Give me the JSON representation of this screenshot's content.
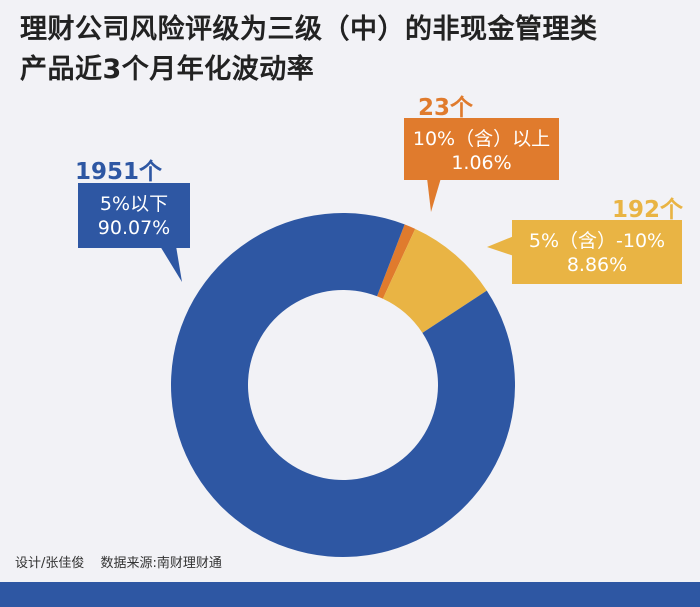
{
  "title_lines": [
    "理财公司风险评级为三级（中）的非现金管理类",
    "产品近3个月年化波动率"
  ],
  "chart_data": {
    "type": "pie",
    "title": "理财公司风险评级为三级（中）的非现金管理类产品近3个月年化波动率",
    "slices": [
      {
        "label": "5%以下",
        "count_label": "1951个",
        "count": 1951,
        "percent": 90.07,
        "percent_label": "90.07%",
        "color": "#2e57a3"
      },
      {
        "label": "10%（含）以上",
        "count_label": "23个",
        "count": 23,
        "percent": 1.06,
        "percent_label": "1.06%",
        "color": "#e07b2d"
      },
      {
        "label": "5%（含）-10%",
        "count_label": "192个",
        "count": 192,
        "percent": 8.86,
        "percent_label": "8.86%",
        "color": "#e9b444"
      }
    ],
    "donut": true,
    "start_angle_deg": 21
  },
  "footer": {
    "designer": "设计/张佳俊",
    "source": "数据来源:南财理财通"
  },
  "colors": {
    "background": "#f2f2f6",
    "blue": "#2e57a3",
    "orange": "#e07b2d",
    "yellow": "#e9b444"
  }
}
